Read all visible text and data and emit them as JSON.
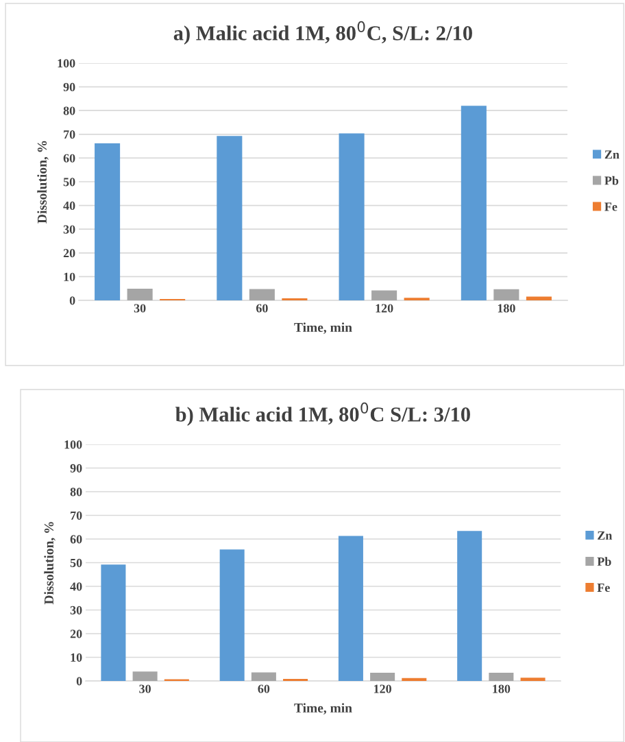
{
  "chart_data": [
    {
      "type": "bar",
      "title": "a) Malic acid 1M, 80$^{0}$C, S/L: 2/10",
      "xlabel": "Time, min",
      "ylabel": "Dissolution, %",
      "categories": [
        "30",
        "60",
        "120",
        "180"
      ],
      "series": [
        {
          "name": "Zn",
          "color": "#5b9bd5",
          "values": [
            66.2,
            69.3,
            70.4,
            82.0
          ]
        },
        {
          "name": "Pb",
          "color": "#a5a5a5",
          "values": [
            4.9,
            4.8,
            4.2,
            4.7
          ]
        },
        {
          "name": "Fe",
          "color": "#ed7d31",
          "values": [
            0.6,
            0.9,
            1.1,
            1.6
          ]
        }
      ],
      "ylim": [
        0,
        100
      ],
      "yticks": [
        0,
        10,
        20,
        30,
        40,
        50,
        60,
        70,
        80,
        90,
        100
      ],
      "grid": "y",
      "legend": "right"
    },
    {
      "type": "bar",
      "title": "b) Malic acid 1M, 80$^{0}$C S/L: 3/10",
      "xlabel": "Time, min",
      "ylabel": "Dissolution, %",
      "categories": [
        "30",
        "60",
        "120",
        "180"
      ],
      "series": [
        {
          "name": "Zn",
          "color": "#5b9bd5",
          "values": [
            49.2,
            55.6,
            61.3,
            63.4
          ]
        },
        {
          "name": "Pb",
          "color": "#a5a5a5",
          "values": [
            4.0,
            3.6,
            3.5,
            3.5
          ]
        },
        {
          "name": "Fe",
          "color": "#ed7d31",
          "values": [
            0.7,
            0.9,
            1.2,
            1.4
          ]
        }
      ],
      "ylim": [
        0,
        100
      ],
      "yticks": [
        0,
        10,
        20,
        30,
        40,
        50,
        60,
        70,
        80,
        90,
        100
      ],
      "grid": "y",
      "legend": "right"
    }
  ]
}
